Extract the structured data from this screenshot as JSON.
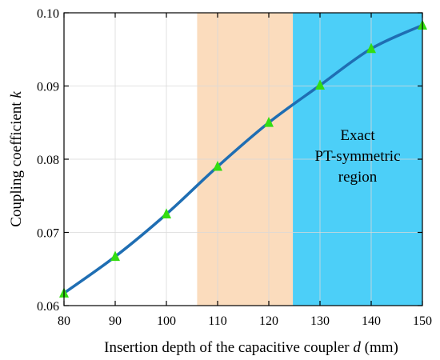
{
  "chart_data": {
    "type": "line",
    "title": "",
    "xlabel": "Insertion depth of the capacitive coupler",
    "xlabel_var": "d",
    "xlabel_unit": "(mm)",
    "ylabel": "Coupling coefficient",
    "ylabel_var": "k",
    "xlim": [
      80,
      150
    ],
    "ylim": [
      0.06,
      0.1
    ],
    "x_ticks": [
      80,
      90,
      100,
      110,
      120,
      130,
      140,
      150
    ],
    "y_ticks": [
      0.06,
      0.07,
      0.08,
      0.09,
      0.1
    ],
    "x_tick_labels": [
      "80",
      "90",
      "100",
      "110",
      "120",
      "130",
      "140",
      "150"
    ],
    "y_tick_labels": [
      "0.06",
      "0.07",
      "0.08",
      "0.09",
      "0.10"
    ],
    "grid": true,
    "series": [
      {
        "x": [
          80,
          90,
          100,
          110,
          120,
          130,
          140,
          150
        ],
        "y": [
          0.0617,
          0.0667,
          0.0725,
          0.079,
          0.085,
          0.0901,
          0.0951,
          0.0983
        ],
        "color": "#1f6eb3",
        "marker": "triangle",
        "marker_color": "#33dd11"
      }
    ],
    "regions": [
      {
        "x_start": 106,
        "x_end": 124.7,
        "color": "#fbdcbd"
      },
      {
        "x_start": 124.7,
        "x_end": 150,
        "color": "#4ccff8",
        "label_lines": [
          "Exact",
          "PT-symmetric",
          "region"
        ]
      }
    ]
  }
}
